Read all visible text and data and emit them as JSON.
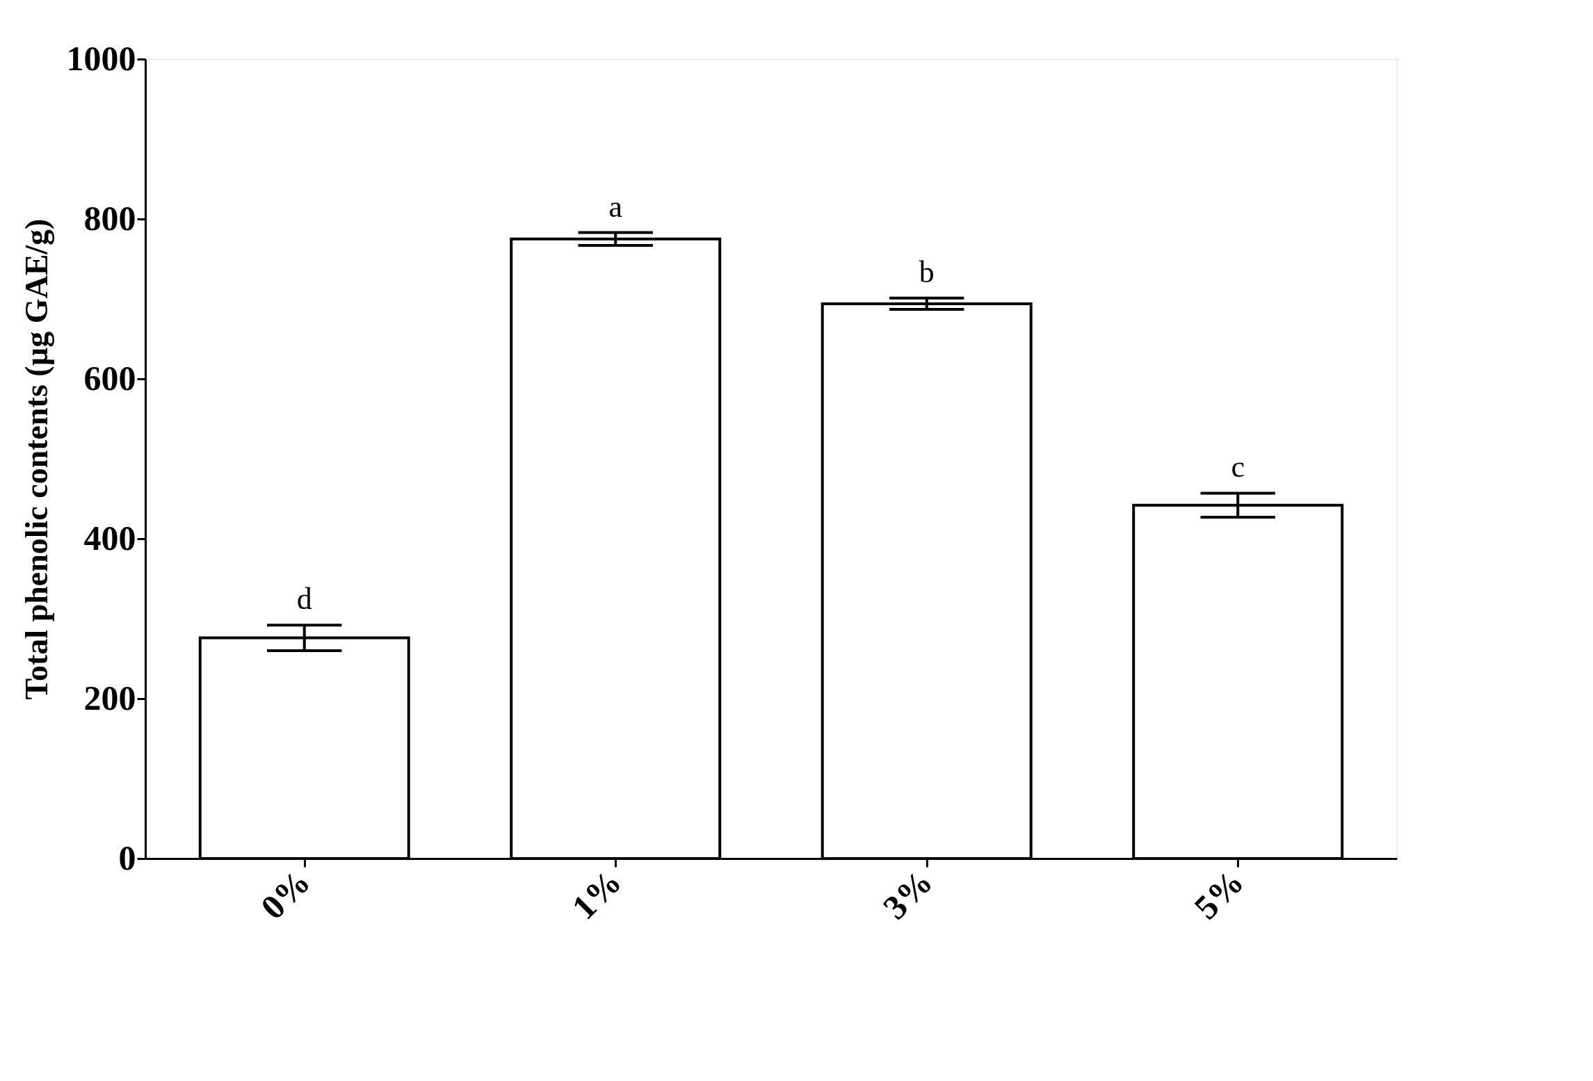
{
  "chart_data": {
    "type": "bar",
    "ylabel": "Total phenolic contents (µg GAE/g)",
    "categories": [
      "0%",
      "1%",
      "3%",
      "5%"
    ],
    "values": [
      276,
      775,
      694,
      442
    ],
    "errors": [
      16,
      8,
      7,
      15
    ],
    "ylim": [
      0,
      1000
    ],
    "yticks": [
      0,
      200,
      400,
      600,
      800,
      1000
    ],
    "grid": false,
    "annotations": [
      {
        "text": "d",
        "x": "0%",
        "y": 292
      },
      {
        "text": "a",
        "x": "1%",
        "y": 783
      },
      {
        "text": "b",
        "x": "3%",
        "y": 701
      },
      {
        "text": "c",
        "x": "5%",
        "y": 457
      }
    ]
  }
}
